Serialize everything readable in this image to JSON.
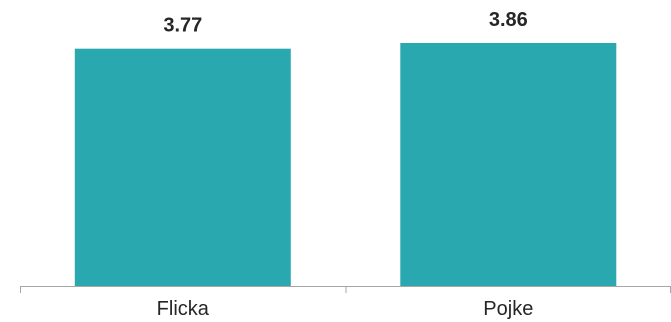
{
  "chart_data": {
    "type": "bar",
    "categories": [
      "Flicka",
      "Pojke"
    ],
    "values": [
      3.77,
      3.86
    ],
    "value_labels": [
      "3.77",
      "3.86"
    ],
    "bar_color": "#2aa8b0",
    "axis_color": "#a6a6a6",
    "text_color": "#262626",
    "grid": false,
    "legend": "none"
  }
}
